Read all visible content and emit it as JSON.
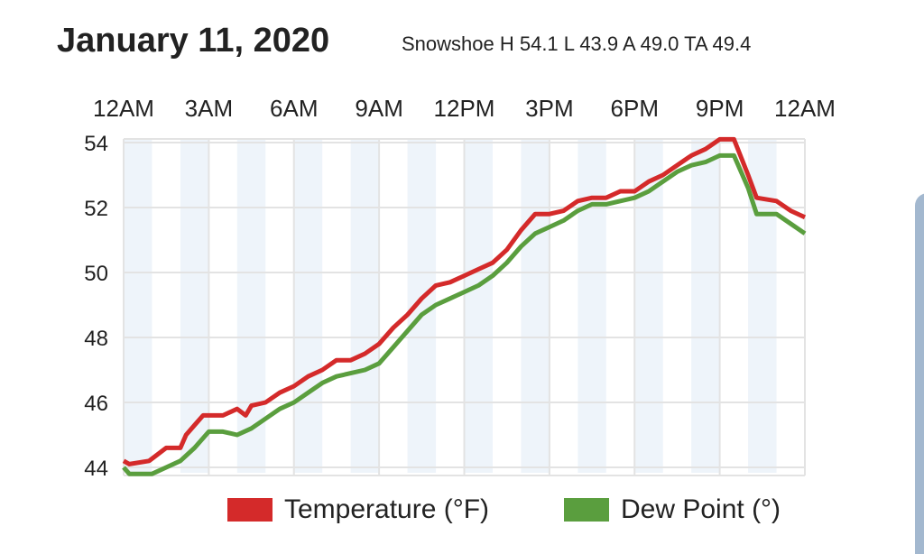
{
  "header": {
    "title": "January 11, 2020",
    "subtitle": "Snowshoe H 54.1 L 43.9 A 49.0 TA 49.4"
  },
  "chart_data": {
    "type": "line",
    "title": "January 11, 2020",
    "xlabel": "",
    "ylabel": "",
    "xlim": [
      0,
      24
    ],
    "ylim": [
      44,
      54
    ],
    "x_ticks": [
      0,
      3,
      6,
      9,
      12,
      15,
      18,
      21,
      24
    ],
    "x_tick_labels": [
      "12AM",
      "3AM",
      "6AM",
      "9AM",
      "12PM",
      "3PM",
      "6PM",
      "9PM",
      "12AM"
    ],
    "y_ticks": [
      44,
      46,
      48,
      50,
      52,
      54
    ],
    "y_tick_labels": [
      "44",
      "46",
      "48",
      "50",
      "52",
      "54"
    ],
    "grid": true,
    "legend_position": "bottom",
    "series": [
      {
        "name": "Temperature (°F)",
        "color": "#d42a2a",
        "x": [
          0,
          0.2,
          0.9,
          1.5,
          2,
          2.2,
          2.5,
          2.8,
          3.5,
          4,
          4.3,
          4.5,
          5,
          5.5,
          6,
          6.5,
          7,
          7.5,
          8,
          8.5,
          9,
          9.5,
          10,
          10.5,
          11,
          11.5,
          12,
          12.5,
          13,
          13.5,
          14,
          14.5,
          15,
          15.5,
          16,
          16.5,
          17,
          17.5,
          18,
          18.5,
          19,
          19.5,
          20,
          20.5,
          21,
          21.5,
          22,
          22.3,
          23,
          23.5,
          24
        ],
        "y": [
          44.2,
          44.1,
          44.2,
          44.6,
          44.6,
          45.0,
          45.3,
          45.6,
          45.6,
          45.8,
          45.6,
          45.9,
          46.0,
          46.3,
          46.5,
          46.8,
          47.0,
          47.3,
          47.3,
          47.5,
          47.8,
          48.3,
          48.7,
          49.2,
          49.6,
          49.7,
          49.9,
          50.1,
          50.3,
          50.7,
          51.3,
          51.8,
          51.8,
          51.9,
          52.2,
          52.3,
          52.3,
          52.5,
          52.5,
          52.8,
          53.0,
          53.3,
          53.6,
          53.8,
          54.1,
          54.1,
          53.0,
          52.3,
          52.2,
          51.9,
          51.7
        ]
      },
      {
        "name": "Dew Point (°)",
        "color": "#5a9e3e",
        "x": [
          0,
          0.2,
          1,
          1.5,
          2,
          2.5,
          3,
          3.5,
          4,
          4.5,
          5,
          5.5,
          6,
          6.5,
          7,
          7.5,
          8,
          8.5,
          9,
          9.5,
          10,
          10.5,
          11,
          11.5,
          12,
          12.5,
          13,
          13.5,
          14,
          14.5,
          15,
          15.5,
          16,
          16.5,
          17,
          17.5,
          18,
          18.5,
          19,
          19.5,
          20,
          20.5,
          21,
          21.5,
          22,
          22.3,
          23,
          23.5,
          24
        ],
        "y": [
          44.0,
          43.8,
          43.8,
          44.0,
          44.2,
          44.6,
          45.1,
          45.1,
          45.0,
          45.2,
          45.5,
          45.8,
          46.0,
          46.3,
          46.6,
          46.8,
          46.9,
          47.0,
          47.2,
          47.7,
          48.2,
          48.7,
          49.0,
          49.2,
          49.4,
          49.6,
          49.9,
          50.3,
          50.8,
          51.2,
          51.4,
          51.6,
          51.9,
          52.1,
          52.1,
          52.2,
          52.3,
          52.5,
          52.8,
          53.1,
          53.3,
          53.4,
          53.6,
          53.6,
          52.6,
          51.8,
          51.8,
          51.5,
          51.2
        ]
      }
    ]
  }
}
